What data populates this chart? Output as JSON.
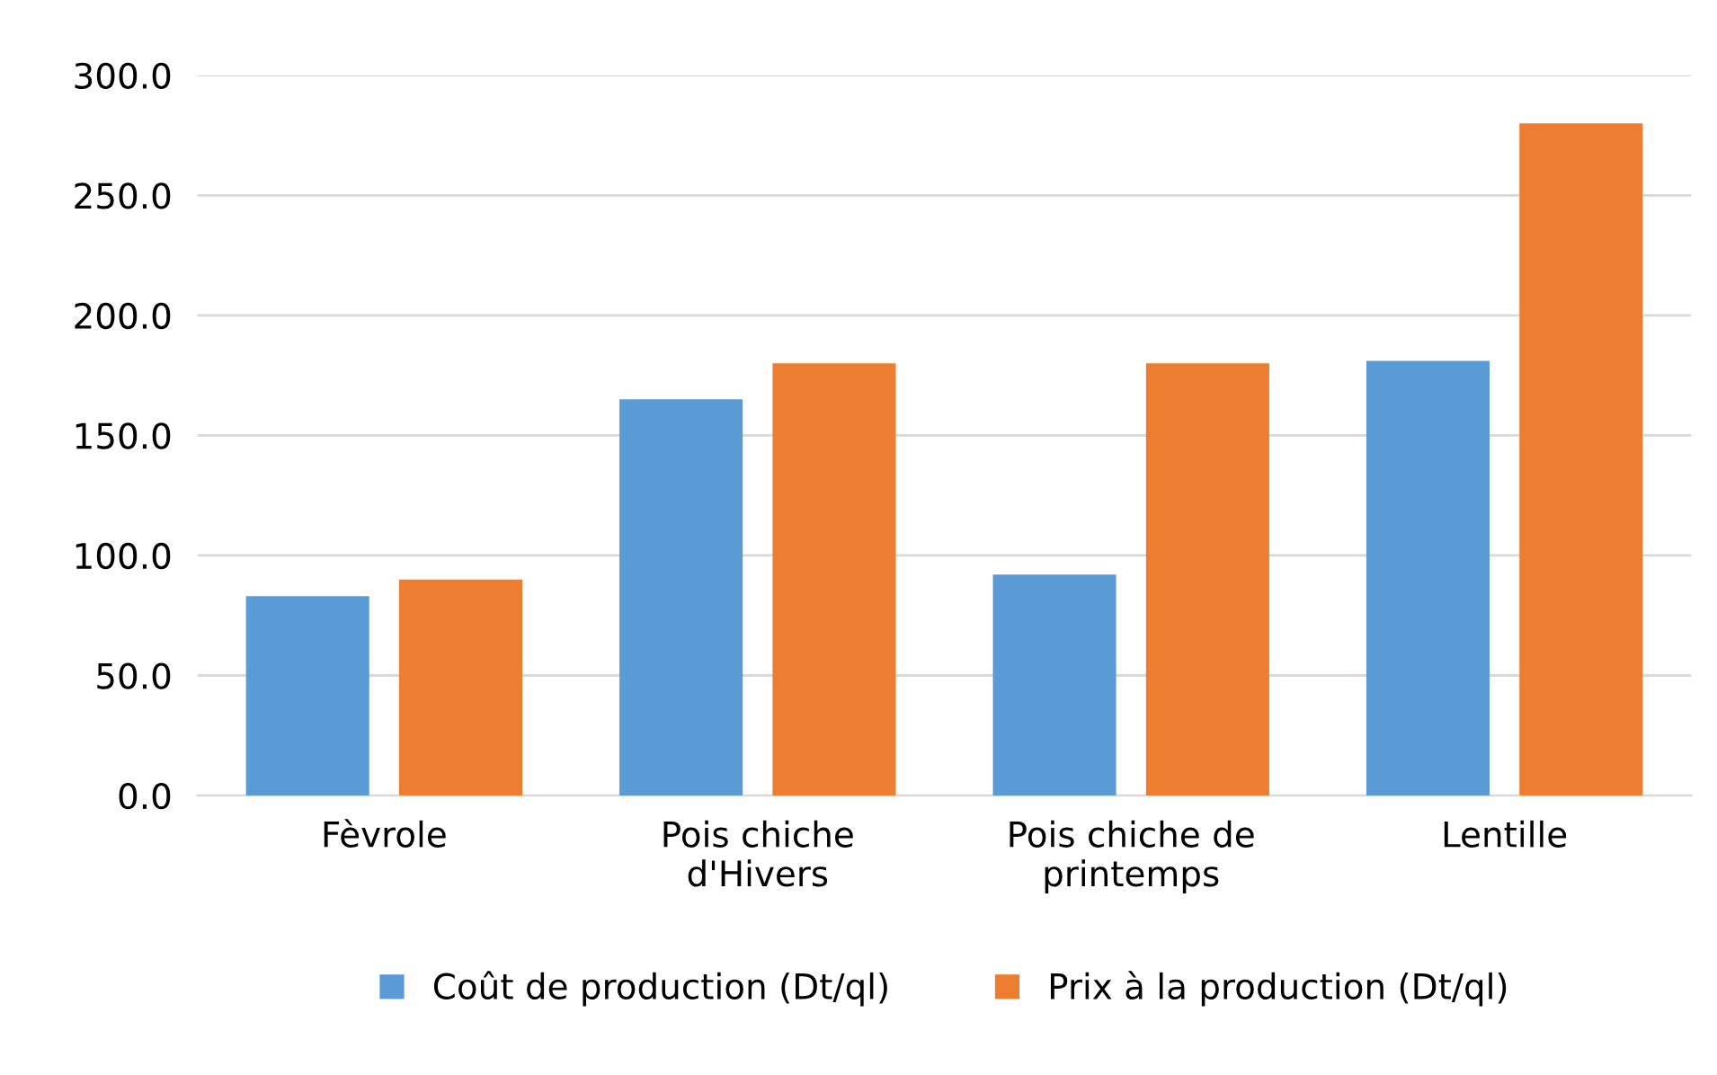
{
  "chart_data": {
    "type": "bar",
    "categories": [
      "Fèvrole",
      "Pois chiche\nd'Hivers",
      "Pois chiche de\nprintemps",
      "Lentille"
    ],
    "series": [
      {
        "name": "Coût de production (Dt/ql)",
        "color": "#5b9bd5",
        "values": [
          83,
          165,
          92,
          181
        ]
      },
      {
        "name": "Prix à la production (Dt/ql)",
        "color": "#ed7d31",
        "values": [
          90,
          180,
          180,
          280
        ]
      }
    ],
    "ylim": [
      0,
      300
    ],
    "yticks": [
      {
        "value": 0,
        "label": "0.0"
      },
      {
        "value": 50,
        "label": "50.0"
      },
      {
        "value": 100,
        "label": "100.0"
      },
      {
        "value": 150,
        "label": "150.0"
      },
      {
        "value": 200,
        "label": "200.0"
      },
      {
        "value": 250,
        "label": "250.0"
      },
      {
        "value": 300,
        "label": "300.0"
      }
    ],
    "grid": "y",
    "legend": "bottom"
  }
}
